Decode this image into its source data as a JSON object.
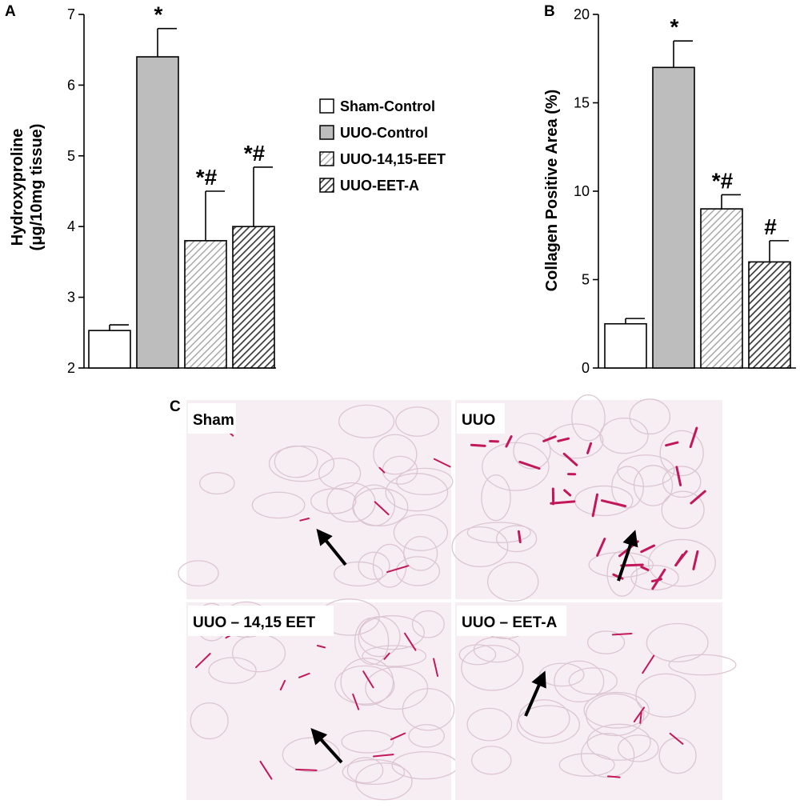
{
  "panel_letters": {
    "a": "A",
    "b": "B",
    "c": "C"
  },
  "legend": [
    {
      "label": "Sham-Control",
      "fill": "white"
    },
    {
      "label": "UUO-Control",
      "fill": "gray"
    },
    {
      "label": "UUO-14,15-EET",
      "fill": "light-hatch"
    },
    {
      "label": "UUO-EET-A",
      "fill": "dark-hatch"
    }
  ],
  "colors": {
    "bar_gray": "#bdbdbd",
    "hatch_light": "#a8a8a8",
    "hatch_dark": "#3a3a3a",
    "stain": "#c2185b",
    "tissue_bg": "#f7eef3"
  },
  "chart_data": [
    {
      "type": "bar",
      "panel": "A",
      "ylabel_line1": "Hydroxyproline",
      "ylabel_line2": "(μg/10mg tissue)",
      "ylim": [
        2,
        7
      ],
      "yticks": [
        "2",
        "3",
        "4",
        "5",
        "6",
        "7"
      ],
      "series": [
        {
          "name": "Sham-Control",
          "value": 2.53,
          "error": 0.08,
          "marker": ""
        },
        {
          "name": "UUO-Control",
          "value": 6.4,
          "error": 0.4,
          "marker": "*"
        },
        {
          "name": "UUO-14,15-EET",
          "value": 3.8,
          "error": 0.7,
          "marker": "*#"
        },
        {
          "name": "UUO-EET-A",
          "value": 4.0,
          "error": 0.84,
          "marker": "*#"
        }
      ]
    },
    {
      "type": "bar",
      "panel": "B",
      "ylabel_line1": "Collagen Positive Area (%)",
      "ylim": [
        0,
        20
      ],
      "yticks": [
        "0",
        "5",
        "10",
        "15",
        "20"
      ],
      "series": [
        {
          "name": "Sham-Control",
          "value": 2.5,
          "error": 0.3,
          "marker": ""
        },
        {
          "name": "UUO-Control",
          "value": 17.0,
          "error": 1.5,
          "marker": "*"
        },
        {
          "name": "UUO-14,15-EET",
          "value": 9.0,
          "error": 0.8,
          "marker": "*#"
        },
        {
          "name": "UUO-EET-A",
          "value": 6.0,
          "error": 1.2,
          "marker": "#"
        }
      ]
    }
  ],
  "micrographs": [
    {
      "label": "Sham",
      "stain_level": "low"
    },
    {
      "label": "UUO",
      "stain_level": "high"
    },
    {
      "label": "UUO – 14,15 EET",
      "stain_level": "medium"
    },
    {
      "label": "UUO – EET-A",
      "stain_level": "low"
    }
  ]
}
